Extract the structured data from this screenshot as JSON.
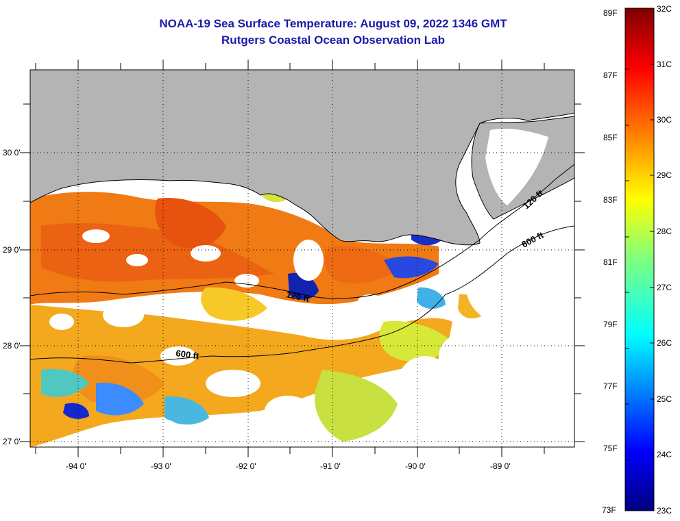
{
  "header": {
    "title_line1": "NOAA-19 Sea Surface Temperature:  August 09, 2022 1346 GMT",
    "title_line2": "Rutgers Coastal Ocean Observation Lab"
  },
  "map": {
    "lat_labels": [
      "30 0'",
      "29 0'",
      "28 0'",
      "27 0'"
    ],
    "lon_labels": [
      "-94 0'",
      "-93 0'",
      "-92 0'",
      "-91 0'",
      "-90 0'",
      "-89 0'"
    ],
    "contours": [
      "120 ft",
      "600 ft"
    ],
    "contour_labels": [
      {
        "text": "120 ft",
        "id": "120-a"
      },
      {
        "text": "600 ft",
        "id": "600-a"
      },
      {
        "text": "120 ft",
        "id": "120-b"
      },
      {
        "text": "600 ft",
        "id": "600-b"
      }
    ],
    "colors": {
      "land": "#b4b4b4",
      "cloud": "#ffffff"
    }
  },
  "colorbar": {
    "fahrenheit": [
      "89F",
      "87F",
      "85F",
      "83F",
      "81F",
      "79F",
      "77F",
      "75F",
      "73F"
    ],
    "celsius": [
      "32C",
      "31C",
      "30C",
      "29C",
      "28C",
      "27C",
      "26C",
      "25C",
      "24C",
      "23C"
    ],
    "range_c": [
      23,
      32
    ],
    "colormap": "jet"
  }
}
